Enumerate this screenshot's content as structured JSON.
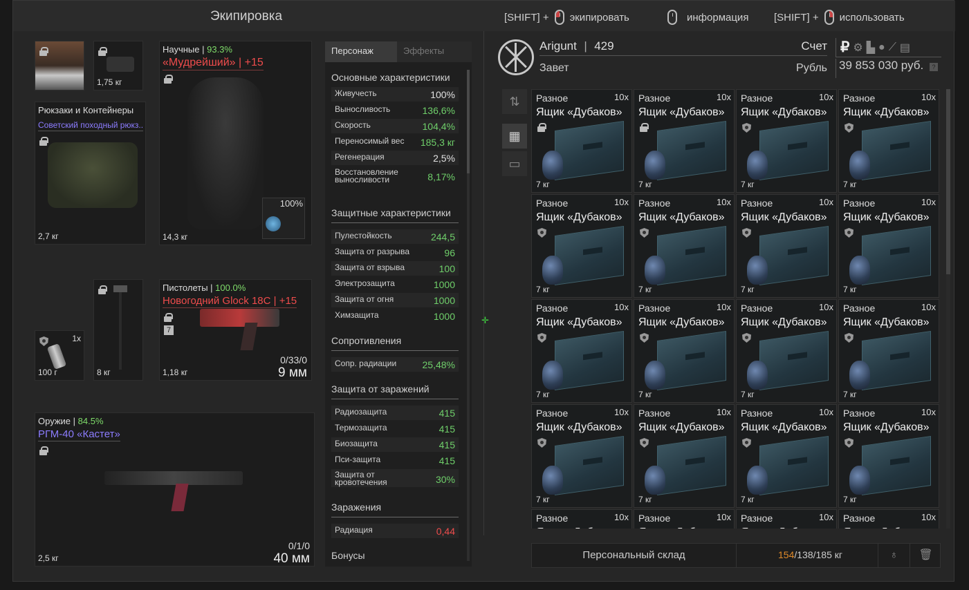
{
  "window": {
    "title": "Экипировка"
  },
  "hints": [
    {
      "prefix": "[SHIFT] +",
      "label": "экипировать"
    },
    {
      "prefix": "",
      "label": "информация"
    },
    {
      "prefix": "[SHIFT] +",
      "label": "использовать"
    }
  ],
  "equipment": {
    "head_small": {
      "weight": "1,75 кг"
    },
    "backpack": {
      "category": "Рюкзаки и Контейнеры",
      "name": "Советский походный рюкз..",
      "weight": "2,7 кг"
    },
    "armor": {
      "category": "Научные",
      "sep": " | ",
      "percent": "93.3%",
      "name": "«Мудрейший» | +15",
      "weight": "14,3 кг",
      "container_percent": "100%"
    },
    "grenade": {
      "count": "1x",
      "weight": "100 г"
    },
    "melee": {
      "weight": "8 кг"
    },
    "pistol": {
      "category": "Пистолеты",
      "sep": " | ",
      "percent": "100.0%",
      "name": "Новогодний Glock 18C | +15",
      "badge": "7",
      "ammo": "0/33/0",
      "caliber": "9 мм",
      "weight": "1,18 кг"
    },
    "weapon": {
      "category": "Оружие",
      "sep": " | ",
      "percent": "84.5%",
      "name": "РГМ-40 «Кастет»",
      "ammo": "0/1/0",
      "caliber": "40 мм",
      "weight": "2,5 кг"
    }
  },
  "stats": {
    "tabs": [
      "Персонаж",
      "Эффекты"
    ],
    "sections": {
      "main": "Основные характеристики",
      "protective": "Защитные характеристики",
      "resist": "Сопротивления",
      "infect": "Защита от заражений",
      "contam": "Заражения",
      "bonus": "Бонусы"
    },
    "main": [
      {
        "k": "Живучесть",
        "v": "100%",
        "c": "#e0e0e0"
      },
      {
        "k": "Выносливость",
        "v": "136,6%",
        "c": "#6fcf6a"
      },
      {
        "k": "Скорость",
        "v": "104,4%",
        "c": "#6fcf6a"
      },
      {
        "k": "Переносимый вес",
        "v": "185,3 кг",
        "c": "#6fcf6a"
      },
      {
        "k": "Регенерация",
        "v": "2,5%",
        "c": "#e0e0e0"
      },
      {
        "k": "Восстановление выносливости",
        "v": "8,17%",
        "c": "#6fcf6a"
      }
    ],
    "protective": [
      {
        "k": "Пулестойкость",
        "v": "244,5",
        "c": "#6fcf6a"
      },
      {
        "k": "Защита от разрыва",
        "v": "96",
        "c": "#6fcf6a"
      },
      {
        "k": "Защита от взрыва",
        "v": "100",
        "c": "#6fcf6a"
      },
      {
        "k": "Электрозащита",
        "v": "1000",
        "c": "#6fcf6a"
      },
      {
        "k": "Защита от огня",
        "v": "1000",
        "c": "#6fcf6a"
      },
      {
        "k": "Химзащита",
        "v": "1000",
        "c": "#6fcf6a"
      }
    ],
    "resist": [
      {
        "k": "Сопр. радиации",
        "v": "25,48%",
        "c": "#6fcf6a"
      }
    ],
    "infect": [
      {
        "k": "Радиозащита",
        "v": "415",
        "c": "#6fcf6a"
      },
      {
        "k": "Термозащита",
        "v": "415",
        "c": "#6fcf6a"
      },
      {
        "k": "Биозащита",
        "v": "415",
        "c": "#6fcf6a"
      },
      {
        "k": "Пси-защита",
        "v": "415",
        "c": "#6fcf6a"
      },
      {
        "k": "Защита от кровотечения",
        "v": "30%",
        "c": "#6fcf6a"
      }
    ],
    "contam": [
      {
        "k": "Радиация",
        "v": "0,44",
        "c": "#ef4c4c"
      }
    ]
  },
  "profile": {
    "name": "Arigunt",
    "sep": "|",
    "level": "429",
    "faction": "Завет",
    "account_label": "Счет",
    "currency_label": "Рубль",
    "balance": "39 853 030 руб.",
    "currency_icons": [
      "ruble-icon",
      "gear-icon",
      "boot-icon",
      "coin-icon",
      "feather-icon",
      "scroll-icon"
    ]
  },
  "inventory": {
    "item": {
      "category": "Разное",
      "count": "10x",
      "name": "Ящик «Дубаков»",
      "weight": "7 кг"
    },
    "rows": 5,
    "cols": 4
  },
  "storage": {
    "label": "Персональный склад",
    "current": "154",
    "weight_rest": "/138/185 кг"
  }
}
